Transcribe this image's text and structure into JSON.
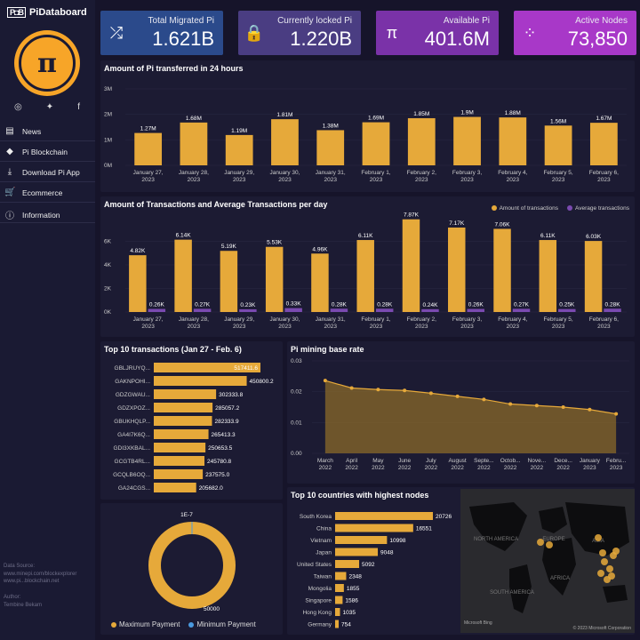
{
  "brand": {
    "mark": "P◘B",
    "name": "PiDataboard",
    "logo_glyph": "π"
  },
  "social": {
    "icons": [
      "instagram-icon",
      "twitter-icon",
      "facebook-icon"
    ]
  },
  "nav": [
    {
      "label": "News",
      "icon": "newspaper-icon",
      "glyph": "▤"
    },
    {
      "label": "Pi Blockchain",
      "icon": "cube-icon",
      "glyph": "◆"
    },
    {
      "label": "Download Pi App",
      "icon": "download-icon",
      "glyph": "⤓"
    },
    {
      "label": "Ecommerce",
      "icon": "cart-icon",
      "glyph": "🛒"
    },
    {
      "label": "Information",
      "icon": "info-icon",
      "glyph": "ⓘ"
    }
  ],
  "footer": {
    "data_source_label": "Data Source:",
    "sources": [
      "www.minepi.com/blockexplorer",
      "www.pi...blockchain.net"
    ],
    "author_label": "Author:",
    "author": "Tembine Bekam"
  },
  "kpis": [
    {
      "label": "Total Migrated Pi",
      "value": "1.621B",
      "icon": "shuffle-icon",
      "glyph": "⤮",
      "color": "#2b4a8b"
    },
    {
      "label": "Currently locked Pi",
      "value": "1.220B",
      "icon": "lock-icon",
      "glyph": "🔒",
      "color": "#4a3d82"
    },
    {
      "label": "Available Pi",
      "value": "401.6M",
      "icon": "pi-icon",
      "glyph": "π",
      "color": "#7a32a8"
    },
    {
      "label": "Active Nodes",
      "value": "73,850",
      "icon": "nodes-icon",
      "glyph": "⁘",
      "color": "#a838c8"
    }
  ],
  "transfer_chart": {
    "title": "Amount of Pi transferred in 24 hours",
    "y_ticks": [
      "0M",
      "1M",
      "2M",
      "3M"
    ],
    "ylim": [
      0,
      3
    ],
    "categories": [
      [
        "January 27,",
        "2023"
      ],
      [
        "January 28,",
        "2023"
      ],
      [
        "January 29,",
        "2023"
      ],
      [
        "January 30,",
        "2023"
      ],
      [
        "January 31,",
        "2023"
      ],
      [
        "February 1,",
        "2023"
      ],
      [
        "February 2,",
        "2023"
      ],
      [
        "February 3,",
        "2023"
      ],
      [
        "February 4,",
        "2023"
      ],
      [
        "February 5,",
        "2023"
      ],
      [
        "February 6,",
        "2023"
      ]
    ],
    "values": [
      1.27,
      1.68,
      1.19,
      1.81,
      1.38,
      1.69,
      1.85,
      1.9,
      1.88,
      1.56,
      1.67
    ],
    "labels": [
      "1.27M",
      "1.68M",
      "1.19M",
      "1.81M",
      "1.38M",
      "1.69M",
      "1.85M",
      "1.9M",
      "1.88M",
      "1.56M",
      "1.67M"
    ]
  },
  "tx_chart": {
    "title": "Amount of Transactions and Average Transactions per day",
    "legend": [
      "Amount of transactions",
      "Average transactions"
    ],
    "colors": [
      "#e6a93a",
      "#7a4ab0"
    ],
    "y_ticks": [
      "0K",
      "2K",
      "4K",
      "6K"
    ],
    "ylim": [
      0,
      8
    ],
    "categories": [
      [
        "January 27,",
        "2023"
      ],
      [
        "January 28,",
        "2023"
      ],
      [
        "January 29,",
        "2023"
      ],
      [
        "January 30,",
        "2023"
      ],
      [
        "January 31,",
        "2023"
      ],
      [
        "February 1,",
        "2023"
      ],
      [
        "February 2,",
        "2023"
      ],
      [
        "February 3,",
        "2023"
      ],
      [
        "February 4,",
        "2023"
      ],
      [
        "February 5,",
        "2023"
      ],
      [
        "February 6,",
        "2023"
      ]
    ],
    "amount": [
      4.82,
      6.14,
      5.19,
      5.53,
      4.96,
      6.11,
      7.87,
      7.17,
      7.06,
      6.11,
      6.03
    ],
    "amount_labels": [
      "4.82K",
      "6.14K",
      "5.19K",
      "5.53K",
      "4.96K",
      "6.11K",
      "7.87K",
      "7.17K",
      "7.06K",
      "6.11K",
      "6.03K"
    ],
    "avg": [
      0.26,
      0.27,
      0.23,
      0.33,
      0.28,
      0.28,
      0.24,
      0.26,
      0.27,
      0.25,
      0.28
    ],
    "avg_labels": [
      "0.26K",
      "0.27K",
      "0.23K",
      "0.33K",
      "0.28K",
      "0.28K",
      "0.24K",
      "0.26K",
      "0.27K",
      "0.25K",
      "0.28K"
    ]
  },
  "top_tx": {
    "title": "Top 10 transactions (Jan 27 - Feb. 6)",
    "names": [
      "GBLJRUYQ...",
      "GAKNPOHI...",
      "GDZGWAU...",
      "GDZXPOZ...",
      "GBUKHQLP...",
      "GA4I7K6Q...",
      "GDI3XKBAL...",
      "GCGTB4RL...",
      "GCQLB6OQ...",
      "GA24CGS..."
    ],
    "values": [
      517411.6,
      450800.2,
      302333.8,
      285057.2,
      282333.9,
      265413.3,
      250653.5,
      245780.8,
      237575.0,
      205682.0
    ],
    "labels": [
      "517411.6",
      "450800.2",
      "302333.8",
      "285057.2",
      "282333.9",
      "265413.3",
      "250653.5",
      "245780.8",
      "237575.0",
      "205682.0"
    ]
  },
  "mining_rate": {
    "title": "Pi mining base rate",
    "y_ticks": [
      "0.00",
      "0.01",
      "0.02",
      "0.03"
    ],
    "ylim": [
      0,
      0.03
    ],
    "categories": [
      [
        "March",
        "2022"
      ],
      [
        "April",
        "2022"
      ],
      [
        "May",
        "2022"
      ],
      [
        "June",
        "2022"
      ],
      [
        "July",
        "2022"
      ],
      [
        "August",
        "2022"
      ],
      [
        "Septe...",
        "2022"
      ],
      [
        "Octob...",
        "2022"
      ],
      [
        "Nove...",
        "2022"
      ],
      [
        "Dece...",
        "2022"
      ],
      [
        "January",
        "2023"
      ],
      [
        "Febru...",
        "2023"
      ]
    ],
    "values": [
      0.0236,
      0.0212,
      0.0207,
      0.0204,
      0.0195,
      0.0185,
      0.0175,
      0.016,
      0.0155,
      0.015,
      0.0142,
      0.0128
    ]
  },
  "payment": {
    "top_label": "1E-7",
    "bottom_label": "50000",
    "legend": [
      "Maximum Payment",
      "Minimum Payment"
    ],
    "colors": [
      "#e6a93a",
      "#4a9ae0"
    ],
    "max": 50000,
    "min": 1e-07
  },
  "countries": {
    "title": "Top 10 countries with highest nodes",
    "names": [
      "South Korea",
      "China",
      "Vietnam",
      "Japan",
      "United States",
      "Taiwan",
      "Mongolia",
      "Singapore",
      "Hong Kong",
      "Germany"
    ],
    "values": [
      20726,
      16551,
      10998,
      9048,
      5092,
      2348,
      1855,
      1586,
      1035,
      754
    ],
    "labels": [
      "20726",
      "16551",
      "10998",
      "9048",
      "5092",
      "2348",
      "1855",
      "1586",
      "1035",
      "754"
    ]
  },
  "map": {
    "labels": [
      "NORTH AMERICA",
      "EUROPE",
      "ASIA",
      "AFRICA",
      "SOUTH AMERICA"
    ],
    "attribution": "© 2023 Microsoft Corporation",
    "brand": "Microsoft Bing"
  }
}
